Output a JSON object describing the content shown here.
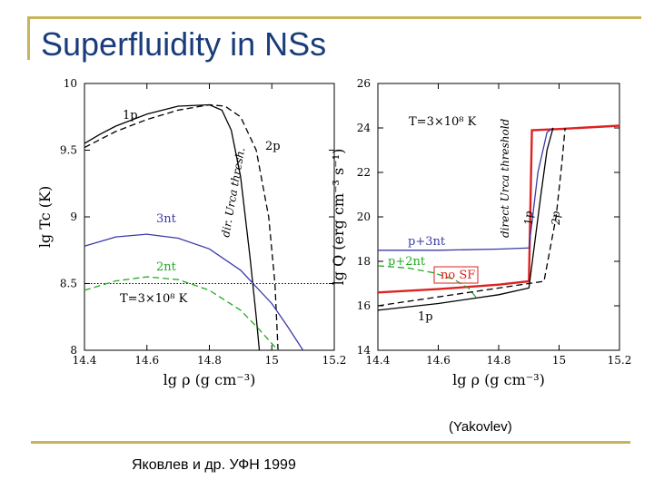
{
  "slide": {
    "title": "Superfluidity in NSs",
    "credit": "(Yakovlev)",
    "reference": "Яковлев и др. УФН 1999"
  },
  "chart_data": [
    {
      "type": "line",
      "title": "",
      "xlabel": "lg ρ (g cm⁻³)",
      "ylabel": "lg Tc (K)",
      "xlim": [
        14.4,
        15.2
      ],
      "ylim": [
        8,
        10
      ],
      "xticks": [
        "14.4",
        "14.6",
        "14.8",
        "15",
        "15.2"
      ],
      "yticks": [
        "8",
        "8.5",
        "9",
        "9.5",
        "10"
      ],
      "series": [
        {
          "name": "1p",
          "color": "#000000",
          "dash": false,
          "x": [
            14.4,
            14.45,
            14.5,
            14.6,
            14.7,
            14.8,
            14.84,
            14.87,
            14.9,
            14.93,
            14.95,
            14.96
          ],
          "y": [
            9.55,
            9.62,
            9.68,
            9.77,
            9.83,
            9.84,
            9.8,
            9.65,
            9.3,
            8.7,
            8.25,
            8.0
          ]
        },
        {
          "name": "",
          "color": "#000000",
          "dash": true,
          "x": [
            14.4,
            14.45,
            14.5,
            14.6,
            14.7,
            14.8,
            14.85,
            14.9,
            14.95,
            14.99,
            15.01,
            15.02
          ],
          "y": [
            9.52,
            9.58,
            9.64,
            9.73,
            9.8,
            9.84,
            9.83,
            9.75,
            9.5,
            9.0,
            8.5,
            8.0
          ]
        },
        {
          "name": "3nt",
          "color": "#3a3aa8",
          "dash": false,
          "x": [
            14.4,
            14.5,
            14.6,
            14.7,
            14.8,
            14.9,
            15.0,
            15.05,
            15.1
          ],
          "y": [
            8.78,
            8.85,
            8.87,
            8.84,
            8.76,
            8.6,
            8.35,
            8.18,
            8.0
          ]
        },
        {
          "name": "2nt",
          "color": "#22aa22",
          "dash": true,
          "x": [
            14.4,
            14.5,
            14.6,
            14.7,
            14.8,
            14.9,
            14.95,
            15.0,
            15.02
          ],
          "y": [
            8.45,
            8.52,
            8.55,
            8.53,
            8.45,
            8.3,
            8.18,
            8.05,
            8.0
          ]
        }
      ],
      "annotations": [
        "1p",
        "2p",
        "3nt",
        "2nt",
        "dir. Urca thresh.",
        "T=3×10⁸ K"
      ],
      "reference_line": {
        "y": 8.5,
        "label": "T=3×10⁸ K"
      }
    },
    {
      "type": "line",
      "title": "",
      "xlabel": "lg ρ (g cm⁻³)",
      "ylabel": "lg Q (erg cm⁻³ s⁻¹)",
      "xlim": [
        14.4,
        15.2
      ],
      "ylim": [
        14,
        26
      ],
      "xticks": [
        "14.4",
        "14.6",
        "14.8",
        "15",
        "15.2"
      ],
      "yticks": [
        "14",
        "16",
        "18",
        "20",
        "22",
        "24",
        "26"
      ],
      "series": [
        {
          "name": "no SF",
          "color": "#dd2222",
          "dash": false,
          "x": [
            14.4,
            14.6,
            14.8,
            14.9,
            14.91,
            15.0,
            15.2
          ],
          "y": [
            16.6,
            16.75,
            16.95,
            17.1,
            23.9,
            23.95,
            24.1
          ]
        },
        {
          "name": "p+3nt",
          "color": "#3a3aa8",
          "dash": false,
          "x": [
            14.4,
            14.6,
            14.8,
            14.9,
            14.93,
            14.96,
            14.98
          ],
          "y": [
            18.5,
            18.5,
            18.55,
            18.6,
            22.0,
            23.8,
            24.0
          ]
        },
        {
          "name": "p+2nt",
          "color": "#22aa22",
          "dash": true,
          "x": [
            14.4,
            14.5,
            14.58,
            14.65,
            14.7,
            14.73
          ],
          "y": [
            17.8,
            17.7,
            17.5,
            17.2,
            16.8,
            16.3
          ]
        },
        {
          "name": "1p",
          "color": "#000000",
          "dash": false,
          "x": [
            14.4,
            14.6,
            14.8,
            14.9,
            14.94,
            14.96,
            14.98
          ],
          "y": [
            15.8,
            16.1,
            16.5,
            16.8,
            21.0,
            23.0,
            24.0
          ]
        },
        {
          "name": "2p",
          "color": "#000000",
          "dash": true,
          "x": [
            14.4,
            14.6,
            14.8,
            14.95,
            14.99,
            15.01,
            15.02
          ],
          "y": [
            16.0,
            16.4,
            16.8,
            17.1,
            20.0,
            22.5,
            24.0
          ]
        }
      ],
      "annotations": [
        "T=3×10⁸ K",
        "direct Urca threshold",
        "1p",
        "2p",
        "p+3nt",
        "p+2nt",
        "no SF",
        "1p"
      ]
    }
  ]
}
